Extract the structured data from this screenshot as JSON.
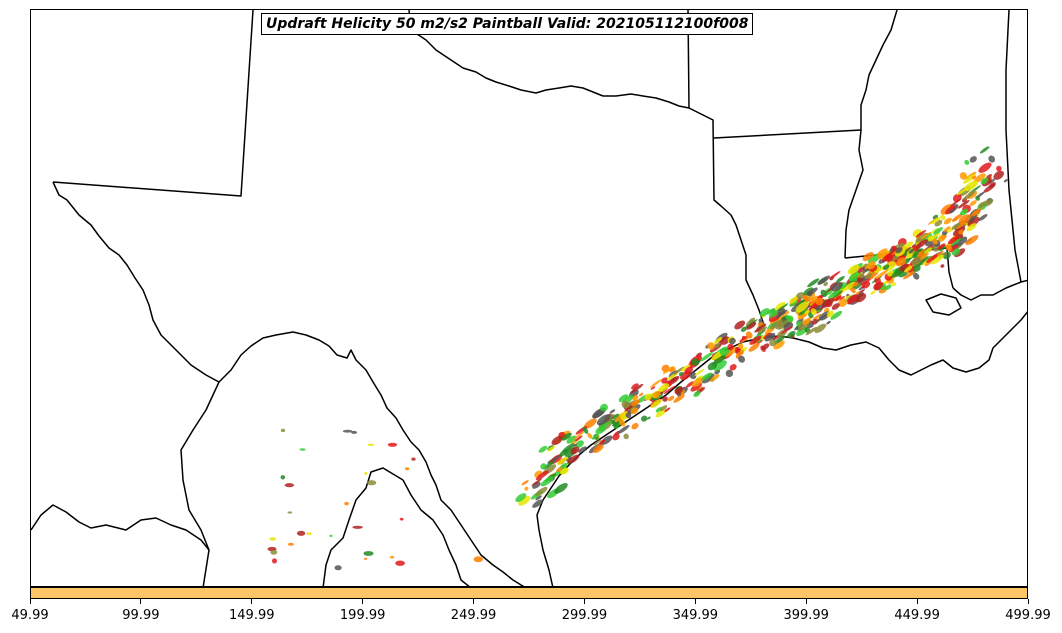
{
  "title": "Updraft Helicity 50 m2/s2 Paintball Valid: 202105112100f008",
  "colorbar": {
    "color": "#ffc466",
    "ticks": [
      "49.99",
      "99.99",
      "149.99",
      "199.99",
      "249.99",
      "299.99",
      "349.99",
      "399.99",
      "449.99",
      "499.99"
    ]
  },
  "map": {
    "region": "Texas, Oklahoma, Louisiana, Arkansas, Mississippi, northern Mexico",
    "paintball_colors": [
      "#e31a1c",
      "#ff7f00",
      "#ff9900",
      "#33cc33",
      "#228b22",
      "#b22222",
      "#8b8b3a",
      "#555555",
      "#e6e600"
    ],
    "band_direction": "southwest-to-northeast along Texas Gulf coast into southern Louisiana"
  }
}
